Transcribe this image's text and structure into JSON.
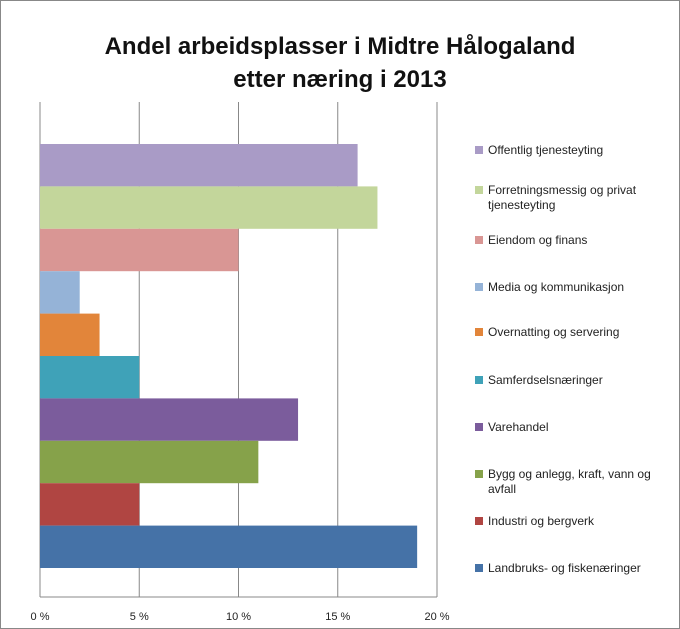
{
  "chart_data": {
    "type": "bar",
    "orientation": "horizontal",
    "title": "Andel arbeidsplasser i Midtre Hålogaland\netter næring i 2013",
    "categories": [
      "Offentlig tjenesteyting",
      "Forretningsmessig og privat tjenesteyting",
      "Eiendom og finans",
      "Media og kommunikasjon",
      "Overnatting og servering",
      "Samferdselsnæringer",
      "Varehandel",
      "Bygg og anlegg, kraft, vann og avfall",
      "Industri og bergverk",
      "Landbruks- og fiskenæringer"
    ],
    "values": [
      16,
      17,
      10,
      2,
      3,
      5,
      13,
      11,
      5,
      19
    ],
    "colors": [
      "#a99bc6",
      "#c3d69b",
      "#d99694",
      "#95b3d7",
      "#e2853a",
      "#3fa2b8",
      "#7b5c9c",
      "#86a24a",
      "#b04542",
      "#4572a7"
    ],
    "xlim": [
      0,
      20
    ],
    "xticks": [
      {
        "value": 0,
        "label": "0 %"
      },
      {
        "value": 5,
        "label": "5 %"
      },
      {
        "value": 10,
        "label": "10 %"
      },
      {
        "value": 15,
        "label": "15 %"
      },
      {
        "value": 20,
        "label": "20 %"
      }
    ],
    "grid": true,
    "legend": "right"
  }
}
